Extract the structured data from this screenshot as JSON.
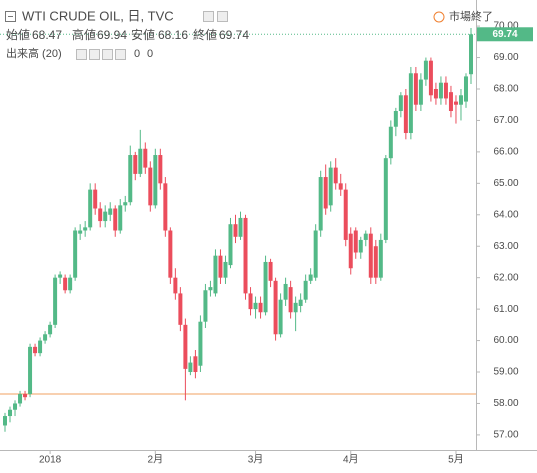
{
  "chart_data": {
    "type": "candlestick",
    "title": "WTI CRUDE OIL, 日, TVC",
    "status": "市場終了",
    "legend": {
      "open_label": "始値",
      "open": 68.47,
      "high_label": "高値",
      "high": 69.94,
      "low_label": "安値",
      "low": 68.16,
      "close_label": "終値",
      "close": 69.74
    },
    "volume": {
      "label": "出来高 (20)",
      "up": 0,
      "down": 0
    },
    "up_color": "#53b987",
    "down_color": "#eb4d5c",
    "hline": 58.3,
    "hline_color": "#f0a060",
    "grid": false,
    "ylim": [
      56.52,
      70.83
    ],
    "yticks": [
      {
        "value": 57,
        "label": "57.00"
      },
      {
        "value": 58,
        "label": "58.00"
      },
      {
        "value": 59,
        "label": "59.00"
      },
      {
        "value": 60,
        "label": "60.00"
      },
      {
        "value": 61,
        "label": "61.00"
      },
      {
        "value": 62,
        "label": "62.00"
      },
      {
        "value": 63,
        "label": "63.00"
      },
      {
        "value": 64,
        "label": "64.00"
      },
      {
        "value": 65,
        "label": "65.00"
      },
      {
        "value": 66,
        "label": "66.00"
      },
      {
        "value": 67,
        "label": "67.00"
      },
      {
        "value": 68,
        "label": "68.00"
      },
      {
        "value": 69,
        "label": "69.00"
      },
      {
        "value": 70,
        "label": "70.00"
      }
    ],
    "categories": [
      null,
      null,
      null,
      null,
      null,
      null,
      null,
      null,
      null,
      "2018",
      null,
      null,
      null,
      null,
      null,
      null,
      null,
      null,
      null,
      null,
      null,
      null,
      null,
      null,
      null,
      null,
      null,
      null,
      null,
      null,
      "2月",
      null,
      null,
      null,
      null,
      null,
      null,
      null,
      null,
      null,
      null,
      null,
      null,
      null,
      null,
      null,
      null,
      null,
      null,
      null,
      "3月",
      null,
      null,
      null,
      null,
      null,
      null,
      null,
      null,
      null,
      null,
      null,
      null,
      null,
      null,
      null,
      null,
      null,
      null,
      "4月",
      null,
      null,
      null,
      null,
      null,
      null,
      null,
      null,
      null,
      null,
      null,
      null,
      null,
      null,
      null,
      null,
      null,
      null,
      null,
      null,
      "5月",
      null,
      null,
      null
    ],
    "ohlc": [
      [
        57.3,
        57.7,
        57.1,
        57.6
      ],
      [
        57.6,
        57.9,
        57.4,
        57.8
      ],
      [
        57.8,
        58.1,
        57.6,
        58.0
      ],
      [
        58.0,
        58.4,
        57.9,
        58.3
      ],
      [
        58.3,
        58.4,
        58.1,
        58.2
      ],
      [
        58.3,
        59.9,
        58.2,
        59.8
      ],
      [
        59.8,
        59.9,
        59.5,
        59.6
      ],
      [
        59.6,
        60.1,
        59.5,
        60.0
      ],
      [
        60.0,
        60.3,
        59.9,
        60.2
      ],
      [
        60.2,
        60.6,
        60.1,
        60.5
      ],
      [
        60.5,
        62.1,
        60.4,
        62.0
      ],
      [
        62.0,
        62.2,
        61.8,
        62.1
      ],
      [
        62.0,
        62.1,
        61.5,
        61.6
      ],
      [
        61.6,
        62.1,
        61.5,
        62.0
      ],
      [
        62.0,
        63.6,
        61.9,
        63.5
      ],
      [
        63.4,
        63.7,
        63.2,
        63.5
      ],
      [
        63.5,
        63.8,
        63.3,
        63.6
      ],
      [
        63.6,
        65.0,
        63.5,
        64.8
      ],
      [
        64.8,
        65.0,
        64.0,
        64.2
      ],
      [
        64.2,
        64.4,
        63.6,
        63.8
      ],
      [
        63.8,
        64.3,
        63.6,
        64.1
      ],
      [
        64.0,
        64.4,
        63.8,
        64.2
      ],
      [
        64.2,
        64.3,
        63.3,
        63.5
      ],
      [
        63.5,
        64.5,
        63.4,
        64.3
      ],
      [
        64.3,
        64.6,
        64.1,
        64.4
      ],
      [
        64.4,
        66.2,
        64.3,
        65.9
      ],
      [
        65.9,
        66.0,
        65.1,
        65.3
      ],
      [
        65.3,
        66.7,
        65.2,
        66.1
      ],
      [
        66.1,
        66.3,
        65.3,
        65.5
      ],
      [
        65.5,
        65.7,
        64.1,
        64.3
      ],
      [
        64.3,
        66.1,
        64.2,
        65.9
      ],
      [
        65.9,
        66.1,
        64.8,
        65.0
      ],
      [
        65.0,
        65.2,
        63.3,
        63.5
      ],
      [
        63.5,
        63.6,
        61.8,
        62.0
      ],
      [
        62.0,
        62.3,
        61.3,
        61.5
      ],
      [
        61.5,
        61.7,
        60.3,
        60.5
      ],
      [
        60.5,
        60.7,
        58.1,
        59.1
      ],
      [
        59.0,
        59.5,
        58.9,
        59.3
      ],
      [
        59.5,
        59.7,
        58.8,
        59.0
      ],
      [
        59.2,
        60.8,
        59.0,
        60.6
      ],
      [
        60.6,
        61.8,
        60.4,
        61.6
      ],
      [
        61.6,
        61.9,
        61.4,
        61.7
      ],
      [
        61.5,
        62.9,
        61.4,
        62.7
      ],
      [
        62.7,
        62.9,
        61.8,
        62.0
      ],
      [
        62.0,
        62.7,
        61.8,
        62.5
      ],
      [
        62.4,
        63.9,
        62.3,
        63.7
      ],
      [
        63.7,
        64.0,
        63.1,
        63.3
      ],
      [
        63.3,
        64.1,
        63.2,
        63.9
      ],
      [
        63.9,
        64.0,
        61.3,
        61.5
      ],
      [
        61.5,
        61.7,
        60.8,
        61.0
      ],
      [
        61.0,
        61.4,
        60.7,
        61.2
      ],
      [
        61.2,
        61.4,
        60.7,
        60.9
      ],
      [
        60.9,
        62.7,
        60.8,
        62.5
      ],
      [
        62.5,
        62.6,
        61.7,
        61.9
      ],
      [
        61.9,
        62.0,
        60.0,
        60.2
      ],
      [
        60.2,
        61.5,
        60.1,
        61.3
      ],
      [
        61.3,
        62.0,
        61.1,
        61.8
      ],
      [
        61.7,
        61.9,
        60.7,
        60.9
      ],
      [
        60.9,
        61.4,
        60.3,
        61.2
      ],
      [
        61.1,
        61.5,
        60.9,
        61.3
      ],
      [
        61.3,
        62.1,
        61.2,
        61.9
      ],
      [
        61.9,
        62.3,
        61.8,
        62.1
      ],
      [
        62.0,
        63.7,
        61.9,
        63.5
      ],
      [
        63.5,
        65.4,
        63.3,
        65.2
      ],
      [
        65.2,
        65.6,
        64.0,
        64.2
      ],
      [
        64.3,
        65.7,
        64.1,
        65.5
      ],
      [
        65.5,
        65.8,
        64.8,
        65.0
      ],
      [
        65.0,
        65.3,
        64.6,
        64.8
      ],
      [
        64.8,
        65.0,
        63.0,
        63.2
      ],
      [
        63.4,
        63.6,
        62.1,
        62.3
      ],
      [
        63.5,
        63.6,
        62.6,
        62.8
      ],
      [
        62.8,
        63.3,
        62.6,
        63.2
      ],
      [
        63.2,
        63.5,
        63.0,
        63.4
      ],
      [
        63.4,
        63.6,
        61.8,
        62.0
      ],
      [
        63.0,
        63.2,
        61.8,
        62.0
      ],
      [
        62.0,
        63.4,
        61.9,
        63.2
      ],
      [
        63.2,
        65.9,
        63.1,
        65.8
      ],
      [
        65.8,
        67.0,
        65.6,
        66.8
      ],
      [
        66.8,
        67.4,
        66.5,
        67.3
      ],
      [
        67.3,
        67.9,
        67.1,
        67.8
      ],
      [
        67.8,
        68.0,
        66.4,
        66.6
      ],
      [
        66.6,
        68.7,
        66.4,
        68.5
      ],
      [
        68.5,
        68.7,
        67.3,
        67.5
      ],
      [
        67.5,
        68.5,
        67.3,
        68.3
      ],
      [
        68.3,
        69.0,
        68.1,
        68.9
      ],
      [
        68.9,
        69.0,
        67.6,
        67.8
      ],
      [
        68.0,
        68.2,
        67.5,
        67.7
      ],
      [
        67.7,
        68.4,
        67.5,
        68.2
      ],
      [
        68.2,
        68.4,
        67.5,
        67.7
      ],
      [
        67.9,
        68.1,
        67.1,
        67.3
      ],
      [
        67.6,
        67.8,
        66.9,
        67.5
      ],
      [
        67.5,
        68.0,
        67.0,
        67.8
      ],
      [
        67.6,
        68.5,
        67.4,
        68.4
      ],
      [
        68.47,
        69.94,
        68.16,
        69.74
      ]
    ]
  }
}
